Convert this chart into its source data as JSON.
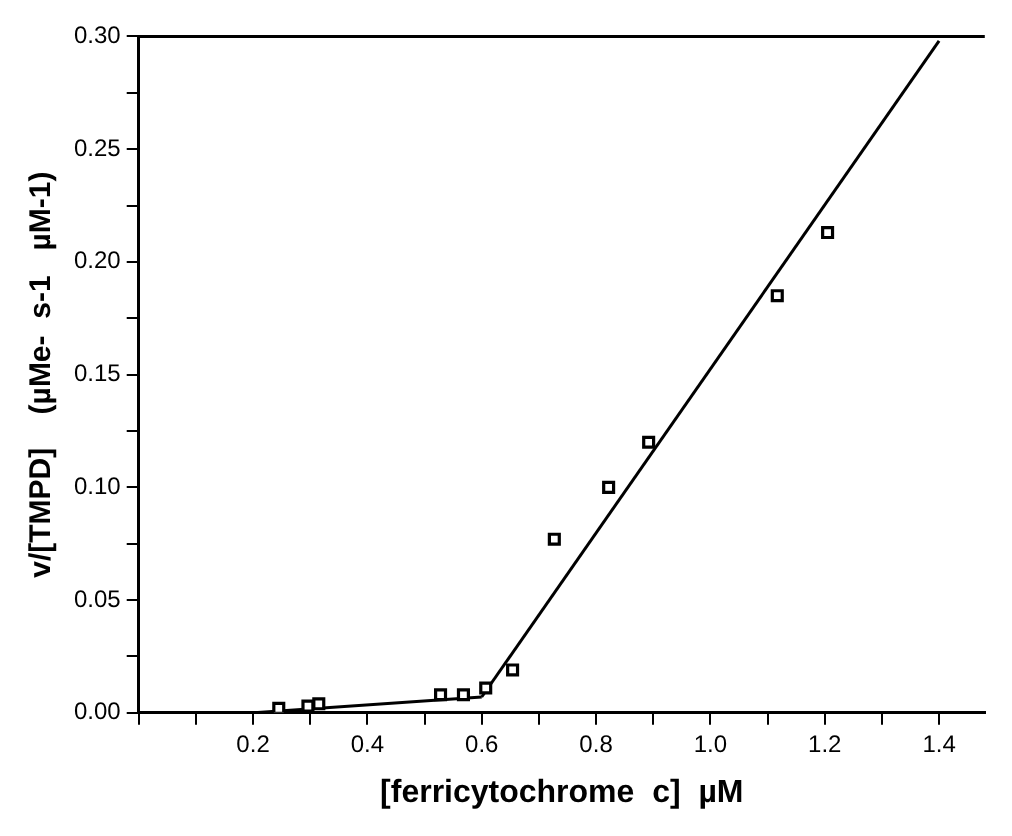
{
  "chart_data": {
    "type": "scatter",
    "xlabel": "[ferricytochrome  c]  µM",
    "ylabel": "v/[TMPD]    (µMe-  s-1   µM-1)",
    "xlim": [
      0,
      1.48
    ],
    "ylim": [
      0,
      0.3
    ],
    "xticks": [
      {
        "value": 0,
        "label": null
      },
      {
        "value": 0.1,
        "label": null
      },
      {
        "value": 0.2,
        "label": "0.2"
      },
      {
        "value": 0.3,
        "label": null
      },
      {
        "value": 0.4,
        "label": "0.4"
      },
      {
        "value": 0.5,
        "label": null
      },
      {
        "value": 0.6,
        "label": "0.6"
      },
      {
        "value": 0.7,
        "label": null
      },
      {
        "value": 0.8,
        "label": "0.8"
      },
      {
        "value": 0.9,
        "label": null
      },
      {
        "value": 1.0,
        "label": "1.0"
      },
      {
        "value": 1.1,
        "label": null
      },
      {
        "value": 1.2,
        "label": "1.2"
      },
      {
        "value": 1.3,
        "label": null
      },
      {
        "value": 1.4,
        "label": "1.4"
      }
    ],
    "yticks": [
      {
        "value": 0,
        "label": "0.00"
      },
      {
        "value": 0.025,
        "label": null
      },
      {
        "value": 0.05,
        "label": "0.05"
      },
      {
        "value": 0.075,
        "label": null
      },
      {
        "value": 0.1,
        "label": "0.10"
      },
      {
        "value": 0.125,
        "label": null
      },
      {
        "value": 0.15,
        "label": "0.15"
      },
      {
        "value": 0.175,
        "label": null
      },
      {
        "value": 0.2,
        "label": "0.20"
      },
      {
        "value": 0.225,
        "label": null
      },
      {
        "value": 0.25,
        "label": "0.25"
      },
      {
        "value": 0.275,
        "label": null
      },
      {
        "value": 0.3,
        "label": "0.30"
      }
    ],
    "marker": "square",
    "legend": false,
    "series": [
      {
        "type": "scatter",
        "color": "#000000",
        "x": [
          0.245,
          0.296,
          0.315,
          0.528,
          0.568,
          0.607,
          0.654,
          0.727,
          0.822,
          0.892,
          1.117,
          1.205
        ],
        "values": [
          0.002,
          0.003,
          0.004,
          0.008,
          0.008,
          0.011,
          0.019,
          0.077,
          0.1,
          0.12,
          0.185,
          0.213
        ]
      },
      {
        "type": "line",
        "color": "#000000",
        "marker": "none",
        "x": [
          0.2,
          0.6
        ],
        "values": [
          0,
          0.007
        ]
      },
      {
        "type": "line",
        "color": "#000000",
        "marker": "none",
        "x": [
          0.6,
          1.4
        ],
        "values": [
          0.007,
          0.298
        ]
      }
    ]
  }
}
